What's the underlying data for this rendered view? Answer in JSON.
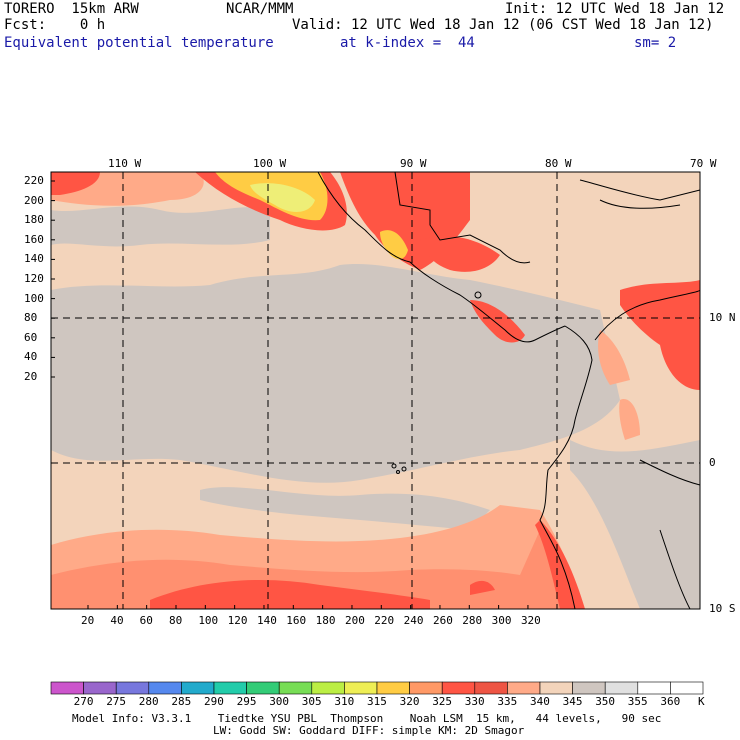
{
  "header": {
    "model": "TORERO  15km ARW",
    "center": "NCAR/MMM",
    "init": "Init: 12 UTC Wed 18 Jan 12",
    "fcst": "Fcst:    0 h",
    "valid": "Valid: 12 UTC Wed 18 Jan 12 (06 CST Wed 18 Jan 12)",
    "field": "Equivalent potential temperature",
    "level": "at k-index =  44",
    "smooth": "sm= 2"
  },
  "axes": {
    "lon_labels": [
      "110 W",
      "100 W",
      "90 W",
      "80 W",
      "70 W"
    ],
    "lat_labels": [
      "10 N",
      "0",
      "10 S"
    ],
    "y_ticks": [
      "220",
      "200",
      "180",
      "160",
      "140",
      "120",
      "100",
      "80",
      "60",
      "40",
      "20"
    ],
    "x_ticks": [
      "20",
      "40",
      "60",
      "80",
      "100",
      "120",
      "140",
      "160",
      "180",
      "200",
      "220",
      "240",
      "260",
      "280",
      "300",
      "320"
    ]
  },
  "colorbar": {
    "labels": [
      "270",
      "275",
      "280",
      "285",
      "290",
      "295",
      "300",
      "305",
      "310",
      "315",
      "320",
      "325",
      "330",
      "335",
      "340",
      "345",
      "350",
      "355",
      "360"
    ],
    "unit": "K",
    "colors": [
      "#cc55cc",
      "#9966cc",
      "#7777dd",
      "#5588ee",
      "#22aacc",
      "#22ccaa",
      "#33cc77",
      "#77dd55",
      "#bbee44",
      "#eeee55",
      "#ffcc44",
      "#ff9966",
      "#ff5544",
      "#ee5544",
      "#ffaa88",
      "#f3d4bb",
      "#cfc6c0",
      "#e0e0e0",
      "#ffffff"
    ]
  },
  "footer": {
    "line1": "Model Info: V3.3.1    Tiedtke YSU PBL  Thompson    Noah LSM  15 km,   44 levels,   90 sec",
    "line2": "LW: Godd SW: Goddard DIFF: simple KM: 2D Smagor"
  }
}
